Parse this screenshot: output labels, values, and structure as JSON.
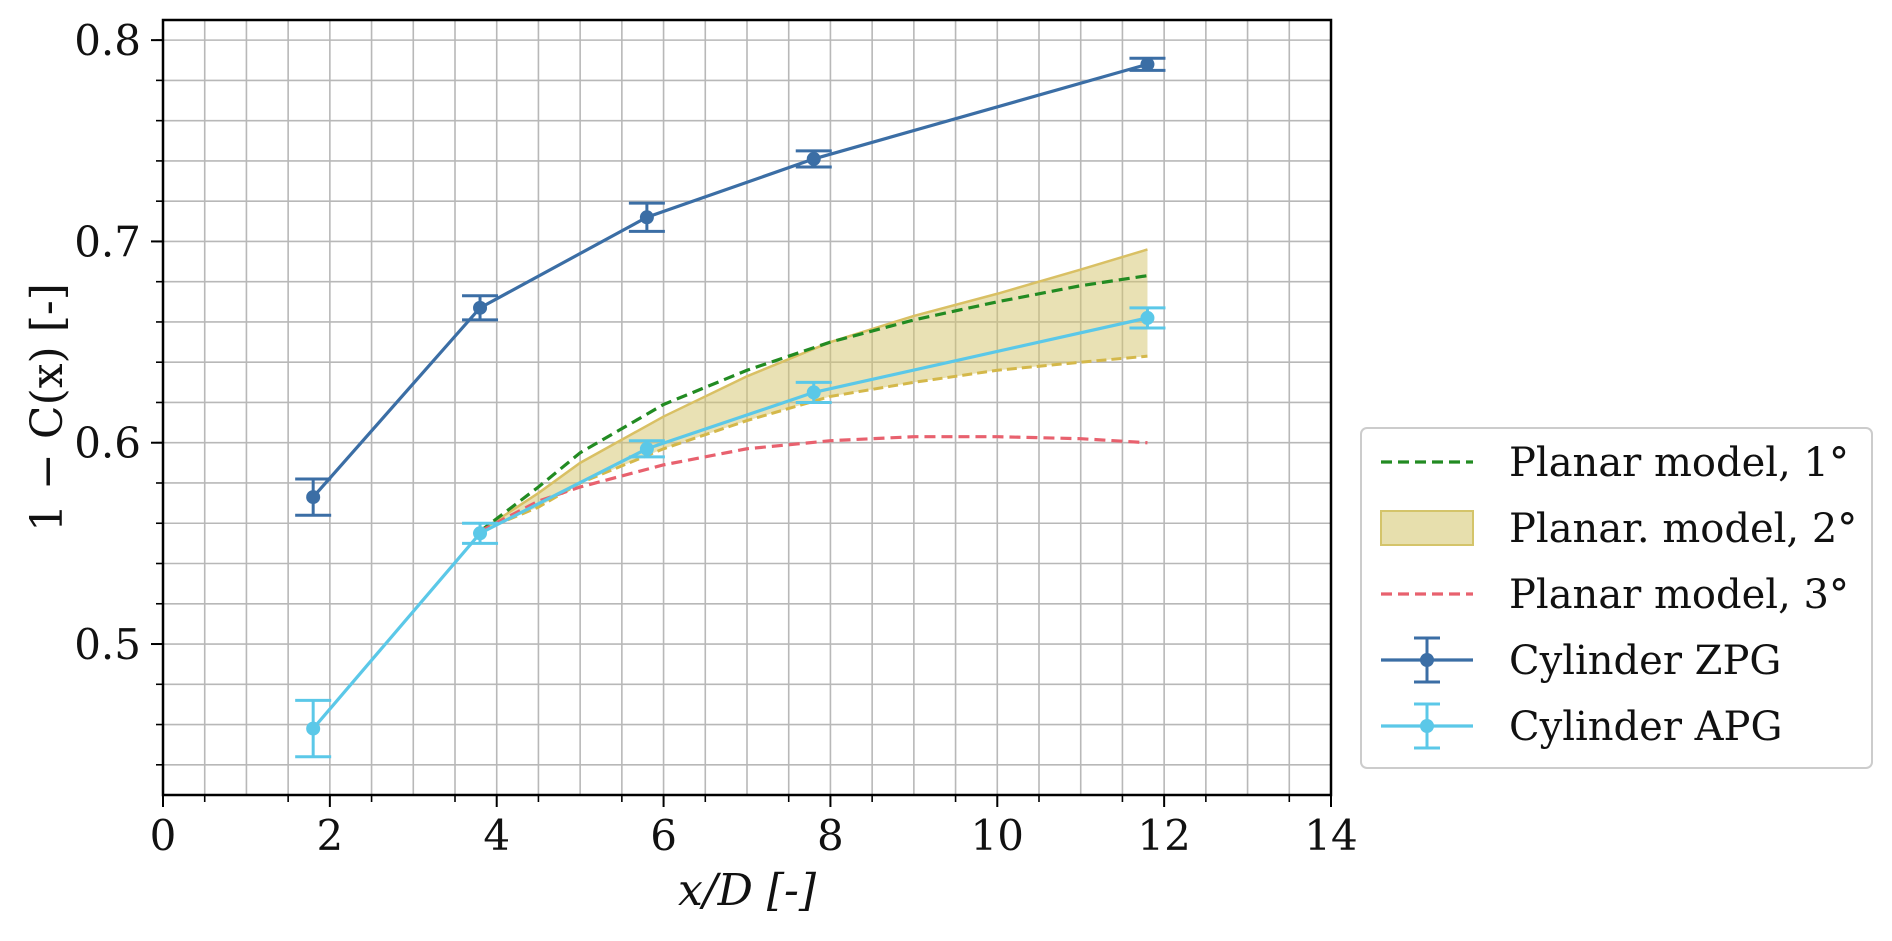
{
  "chart_data": {
    "type": "line",
    "xlabel": "x/D [-]",
    "ylabel": "1 − C(x) [-]",
    "xlim": [
      0,
      14
    ],
    "ylim": [
      0.425,
      0.81
    ],
    "xticks": [
      0,
      2,
      4,
      6,
      8,
      10,
      12,
      14
    ],
    "xtick_labels": [
      "0",
      "2",
      "4",
      "6",
      "8",
      "10",
      "12",
      "14"
    ],
    "yticks": [
      0.5,
      0.6,
      0.7,
      0.8
    ],
    "ytick_labels": [
      "0.5",
      "0.6",
      "0.7",
      "0.8"
    ],
    "x_minor_step": 0.5,
    "y_minor_step": 0.02,
    "grid": "on (major and minor)",
    "legend_position": "right, outside plot (lower)",
    "series": [
      {
        "name": "Planar model, 1°",
        "kind": "dashed-line",
        "color": "#228b22",
        "x": [
          3.8,
          4.5,
          5.0,
          6.0,
          7.0,
          8.0,
          9.0,
          10.0,
          11.0,
          11.8
        ],
        "y": [
          0.556,
          0.578,
          0.595,
          0.619,
          0.636,
          0.65,
          0.661,
          0.67,
          0.678,
          0.683
        ]
      },
      {
        "name": "Planar. model, 2°",
        "kind": "band",
        "color": "#d4c46a",
        "x": [
          3.8,
          4.5,
          5.0,
          6.0,
          7.0,
          8.0,
          9.0,
          10.0,
          11.0,
          11.8
        ],
        "y_upper": [
          0.556,
          0.575,
          0.59,
          0.613,
          0.633,
          0.65,
          0.663,
          0.674,
          0.686,
          0.696
        ],
        "y_lower": [
          0.556,
          0.568,
          0.58,
          0.597,
          0.611,
          0.623,
          0.63,
          0.636,
          0.64,
          0.643
        ]
      },
      {
        "name": "Planar model, 3°",
        "kind": "dashed-line",
        "color": "#e8616e",
        "x": [
          3.8,
          4.5,
          5.0,
          6.0,
          7.0,
          8.0,
          9.0,
          10.0,
          11.0,
          11.8
        ],
        "y": [
          0.556,
          0.571,
          0.578,
          0.589,
          0.597,
          0.601,
          0.603,
          0.603,
          0.602,
          0.6
        ]
      },
      {
        "name": "Cylinder ZPG",
        "kind": "errorbar-line",
        "color": "#3b6ea5",
        "x": [
          1.8,
          3.8,
          5.8,
          7.8,
          11.8
        ],
        "y": [
          0.573,
          0.667,
          0.712,
          0.741,
          0.788
        ],
        "yerr": [
          0.009,
          0.006,
          0.007,
          0.004,
          0.003
        ]
      },
      {
        "name": "Cylinder APG",
        "kind": "errorbar-line",
        "color": "#5bc8e8",
        "x": [
          1.8,
          3.8,
          5.8,
          7.8,
          11.8
        ],
        "y": [
          0.458,
          0.555,
          0.597,
          0.625,
          0.662
        ],
        "yerr": [
          0.014,
          0.005,
          0.004,
          0.005,
          0.005
        ]
      }
    ]
  }
}
